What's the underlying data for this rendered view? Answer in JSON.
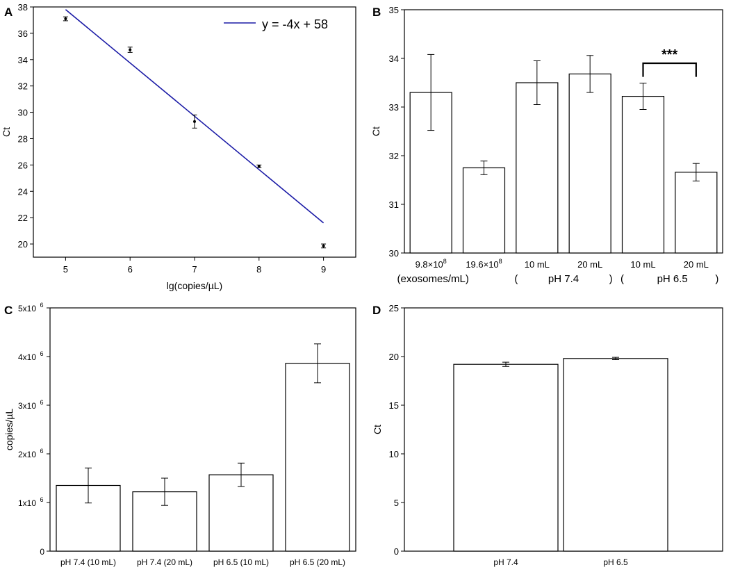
{
  "colors": {
    "axis": "#000000",
    "fit_line": "#1a1aa6",
    "bar_fill": "#ffffff",
    "background": "#ffffff"
  },
  "chart_data": [
    {
      "panel": "A",
      "type": "scatter",
      "xlabel": "lg(copies/µL)",
      "ylabel": "Ct",
      "xlim": [
        4.5,
        9.5
      ],
      "ylim": [
        19,
        38
      ],
      "xticks": [
        5,
        6,
        7,
        8,
        9
      ],
      "yticks": [
        20,
        22,
        24,
        26,
        28,
        30,
        32,
        34,
        36,
        38
      ],
      "x": [
        5,
        6,
        7,
        8,
        9
      ],
      "y": [
        37.1,
        34.75,
        29.3,
        25.9,
        19.85
      ],
      "errors": [
        0.15,
        0.2,
        0.5,
        0.1,
        0.15
      ],
      "fit": {
        "label": "y = -4x + 58",
        "slope": -4,
        "intercept": 58,
        "x_range": [
          5,
          9
        ],
        "y_at_start": 37.8,
        "y_at_end": 21.6
      },
      "legend_position": "top-right"
    },
    {
      "panel": "B",
      "type": "bar",
      "ylabel": "Ct",
      "ylim": [
        30,
        35
      ],
      "yticks": [
        30,
        31,
        32,
        33,
        34,
        35
      ],
      "categories": [
        "9.8×10",
        "19.6×10",
        "10 mL",
        "20 mL",
        "10 mL",
        "20 mL"
      ],
      "category_superscripts": [
        "8",
        "8",
        "",
        "",
        "",
        ""
      ],
      "values": [
        33.3,
        31.75,
        33.5,
        33.68,
        33.22,
        31.66
      ],
      "errors": [
        0.78,
        0.14,
        0.45,
        0.38,
        0.27,
        0.18
      ],
      "group_labels": [
        "(exosomes/mL)",
        "(",
        "pH 7.4",
        ")",
        "(",
        "pH 6.5",
        ")"
      ],
      "significance": {
        "label": "***",
        "between": [
          4,
          5
        ]
      }
    },
    {
      "panel": "C",
      "type": "bar",
      "ylabel": "copies/µL",
      "ylim": [
        0,
        5000000
      ],
      "yticks": [
        {
          "value": 0,
          "base": "0",
          "exp": ""
        },
        {
          "value": 1000000,
          "base": "1x10",
          "exp": "6"
        },
        {
          "value": 2000000,
          "base": "2x10",
          "exp": "6"
        },
        {
          "value": 3000000,
          "base": "3x10",
          "exp": "6"
        },
        {
          "value": 4000000,
          "base": "4x10",
          "exp": "6"
        },
        {
          "value": 5000000,
          "base": "5x10",
          "exp": "6"
        }
      ],
      "categories": [
        "pH 7.4 (10 mL)",
        "pH 7.4 (20 mL)",
        "pH 6.5 (10 mL)",
        "pH 6.5 (20 mL)"
      ],
      "values": [
        1350000,
        1220000,
        1570000,
        3860000
      ],
      "errors": [
        360000,
        280000,
        240000,
        400000
      ]
    },
    {
      "panel": "D",
      "type": "bar",
      "ylabel": "Ct",
      "ylim": [
        0,
        25
      ],
      "yticks": [
        0,
        5,
        10,
        15,
        20,
        25
      ],
      "categories": [
        "pH 7.4",
        "pH 6.5"
      ],
      "values": [
        19.2,
        19.8
      ],
      "errors": [
        0.22,
        0.12
      ]
    }
  ]
}
